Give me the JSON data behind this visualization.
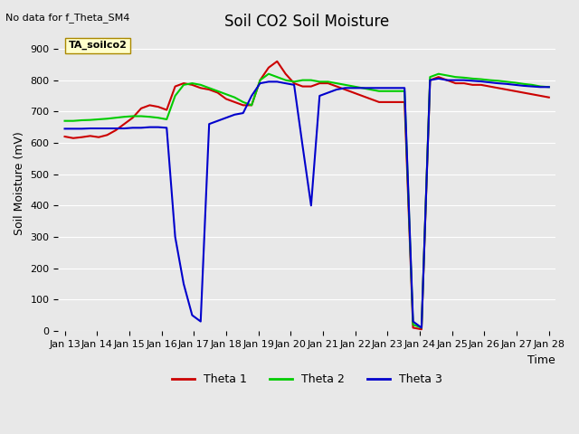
{
  "title": "Soil CO2 Soil Moisture",
  "ylabel": "Soil Moisture (mV)",
  "xlabel": "Time",
  "top_left_text": "No data for f_Theta_SM4",
  "legend_box_text": "TA_soilco2",
  "ylim": [
    0,
    940
  ],
  "yticks": [
    0,
    100,
    200,
    300,
    400,
    500,
    600,
    700,
    800,
    900
  ],
  "bg_color": "#e8e8e8",
  "plot_bg_color": "#e8e8e8",
  "grid_color": "#ffffff",
  "colors": {
    "theta1": "#cc0000",
    "theta2": "#00cc00",
    "theta3": "#0000cc"
  },
  "x_tick_labels": [
    "Jan 13",
    "Jan 14",
    "Jan 15",
    "Jan 16",
    "Jan 17",
    "Jan 18",
    "Jan 19",
    "Jan 20",
    "Jan 21",
    "Jan 22",
    "Jan 23",
    "Jan 24",
    "Jan 25",
    "Jan 26",
    "Jan 27",
    "Jan 28"
  ],
  "x_tick_positions": [
    0,
    1,
    2,
    3,
    4,
    5,
    6,
    7,
    8,
    9,
    10,
    11,
    12,
    13,
    14,
    15
  ],
  "xlim": [
    -0.2,
    15.2
  ],
  "theta1": [
    620,
    615,
    618,
    622,
    618,
    625,
    640,
    660,
    680,
    710,
    720,
    715,
    705,
    780,
    790,
    785,
    775,
    770,
    760,
    740,
    730,
    720,
    720,
    800,
    840,
    860,
    820,
    790,
    780,
    780,
    790,
    790,
    780,
    770,
    760,
    750,
    740,
    730,
    730,
    730,
    730,
    10,
    5,
    800,
    810,
    800,
    790,
    790,
    785,
    785,
    780,
    775,
    770,
    765,
    760,
    755,
    750,
    745
  ],
  "theta2": [
    670,
    670,
    672,
    673,
    675,
    677,
    680,
    683,
    685,
    685,
    683,
    680,
    675,
    750,
    785,
    790,
    785,
    775,
    765,
    755,
    745,
    730,
    720,
    800,
    820,
    810,
    800,
    795,
    800,
    800,
    795,
    795,
    790,
    785,
    780,
    775,
    770,
    765,
    765,
    765,
    765,
    20,
    10,
    810,
    820,
    815,
    810,
    808,
    805,
    803,
    800,
    798,
    795,
    792,
    788,
    785,
    780,
    778
  ],
  "theta3": [
    645,
    645,
    645,
    646,
    646,
    646,
    646,
    646,
    648,
    648,
    650,
    650,
    648,
    300,
    150,
    50,
    30,
    660,
    670,
    680,
    690,
    695,
    750,
    790,
    795,
    795,
    790,
    785,
    590,
    400,
    750,
    760,
    770,
    775,
    775,
    775,
    775,
    775,
    775,
    775,
    775,
    30,
    10,
    800,
    805,
    800,
    800,
    800,
    798,
    796,
    793,
    790,
    788,
    785,
    782,
    780,
    778,
    778
  ]
}
